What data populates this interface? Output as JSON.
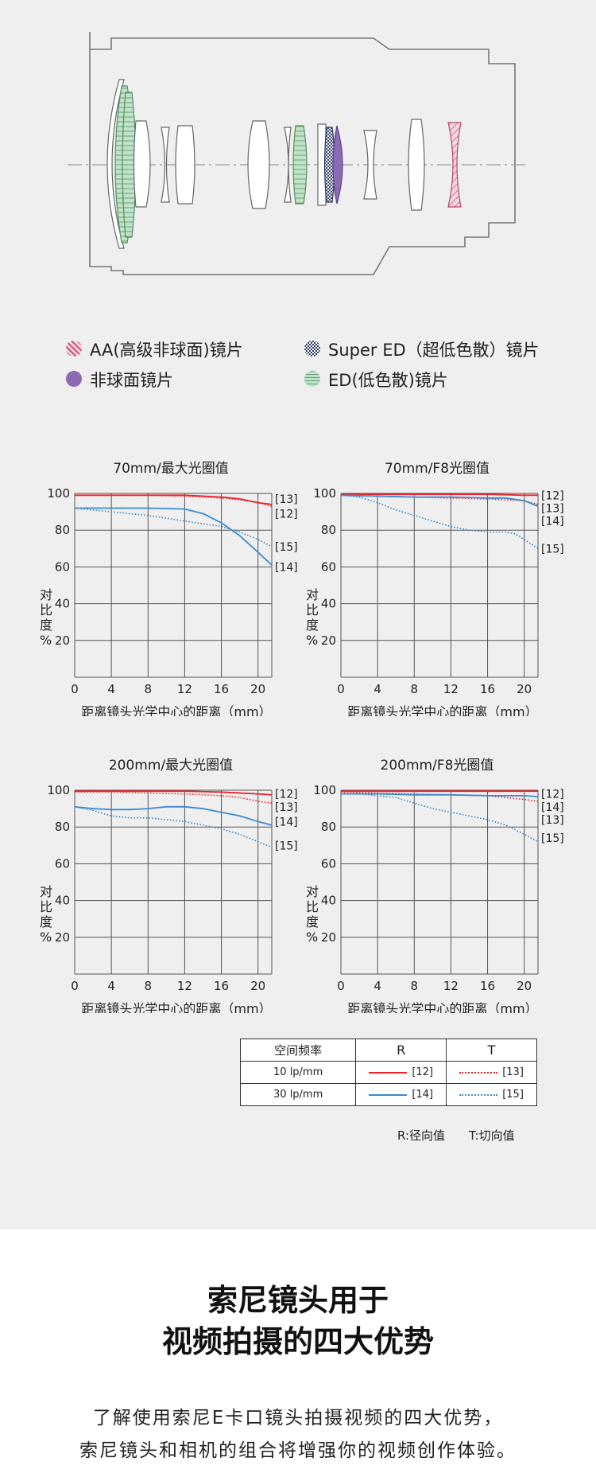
{
  "legend": {
    "aa": "AA(高级非球面)镜片",
    "super_ed": "Super ED（超低色散）镜片",
    "aspherical": "非球面镜片",
    "ed": "ED(低色散)镜片"
  },
  "colors": {
    "aa": "#e7a6b6",
    "super_ed": "#2a3a6a",
    "aspherical": "#8d6bb4",
    "ed": "#a6d6b0",
    "red": "#e8232c",
    "blue": "#3b8ad0",
    "grid": "#555555"
  },
  "axis_ylabel": "对比度%",
  "axis_xlabel": "距离镜头光学中心的距离（mm）",
  "chart_data": [
    {
      "type": "line",
      "title": "70mm/最大光圈值",
      "xlabel": "距离镜头光学中心的距离（mm）",
      "ylabel": "对比度%",
      "xlim": [
        0,
        21.5
      ],
      "ylim": [
        0,
        100
      ],
      "xticks": [
        0,
        4,
        8,
        12,
        16,
        20
      ],
      "yticks": [
        20,
        40,
        60,
        80,
        100
      ],
      "series": [
        {
          "name": "[12]",
          "style": "solid",
          "color": "red",
          "x": [
            0,
            4,
            8,
            12,
            16,
            18,
            20,
            21.5
          ],
          "y": [
            99,
            99,
            99,
            99,
            98,
            97,
            95,
            94
          ]
        },
        {
          "name": "[13]",
          "style": "dotted",
          "color": "red",
          "x": [
            0,
            4,
            8,
            12,
            16,
            18,
            20,
            21.5
          ],
          "y": [
            99,
            99,
            99,
            98.5,
            97.5,
            96.5,
            95,
            93
          ]
        },
        {
          "name": "[14]",
          "style": "solid",
          "color": "blue",
          "x": [
            0,
            4,
            8,
            12,
            14,
            16,
            18,
            20,
            21.5
          ],
          "y": [
            92,
            92,
            92,
            91.5,
            89,
            84,
            77,
            68,
            61
          ]
        },
        {
          "name": "[15]",
          "style": "dotted",
          "color": "blue",
          "x": [
            0,
            4,
            8,
            12,
            16,
            18,
            20,
            21.5
          ],
          "y": [
            92,
            90,
            88,
            85,
            82,
            79,
            75,
            71
          ]
        }
      ],
      "labels": [
        {
          "text": "[13]",
          "y": 97
        },
        {
          "text": "[12]",
          "y": 89
        },
        {
          "text": "[15]",
          "y": 71
        },
        {
          "text": "[14]",
          "y": 60
        }
      ]
    },
    {
      "type": "line",
      "title": "70mm/F8光圈值",
      "xlabel": "距离镜头光学中心的距离（mm）",
      "ylabel": "对比度%",
      "xlim": [
        0,
        21.5
      ],
      "ylim": [
        0,
        100
      ],
      "xticks": [
        0,
        4,
        8,
        12,
        16,
        20
      ],
      "yticks": [
        20,
        40,
        60,
        80,
        100
      ],
      "series": [
        {
          "name": "[12]",
          "style": "solid",
          "color": "red",
          "x": [
            0,
            4,
            8,
            12,
            16,
            20,
            21.5
          ],
          "y": [
            99.5,
            99.5,
            99.5,
            99.5,
            99.5,
            99,
            99
          ]
        },
        {
          "name": "[13]",
          "style": "dotted",
          "color": "red",
          "x": [
            0,
            4,
            8,
            12,
            16,
            20,
            21.5
          ],
          "y": [
            99,
            98.5,
            98,
            97.5,
            97,
            96,
            94
          ]
        },
        {
          "name": "[14]",
          "style": "solid",
          "color": "blue",
          "x": [
            0,
            4,
            8,
            12,
            16,
            18,
            20,
            21.5
          ],
          "y": [
            99,
            98.5,
            98,
            98,
            97.5,
            97.5,
            96,
            93
          ]
        },
        {
          "name": "[15]",
          "style": "dotted",
          "color": "blue",
          "x": [
            0,
            2,
            4,
            6,
            8,
            10,
            12,
            14,
            16,
            18,
            19,
            20,
            21.5
          ],
          "y": [
            99,
            98,
            95,
            91,
            88,
            85,
            82,
            80,
            79,
            79,
            78,
            75,
            70
          ]
        }
      ],
      "labels": [
        {
          "text": "[12]",
          "y": 99
        },
        {
          "text": "[13]",
          "y": 92
        },
        {
          "text": "[14]",
          "y": 85
        },
        {
          "text": "[15]",
          "y": 70
        }
      ]
    },
    {
      "type": "line",
      "title": "200mm/最大光圈值",
      "xlabel": "距离镜头光学中心的距离（mm）",
      "ylabel": "对比度%",
      "xlim": [
        0,
        21.5
      ],
      "ylim": [
        0,
        100
      ],
      "xticks": [
        0,
        4,
        8,
        12,
        16,
        20
      ],
      "yticks": [
        20,
        40,
        60,
        80,
        100
      ],
      "series": [
        {
          "name": "[12]",
          "style": "solid",
          "color": "red",
          "x": [
            0,
            4,
            8,
            12,
            16,
            20,
            21.5
          ],
          "y": [
            99.5,
            99.5,
            99.5,
            99.5,
            99,
            98,
            97.5
          ]
        },
        {
          "name": "[13]",
          "style": "dotted",
          "color": "red",
          "x": [
            0,
            4,
            8,
            12,
            16,
            18,
            20,
            21.5
          ],
          "y": [
            99,
            99,
            98.5,
            98,
            97,
            96,
            94,
            93
          ]
        },
        {
          "name": "[14]",
          "style": "solid",
          "color": "blue",
          "x": [
            0,
            2,
            4,
            6,
            8,
            10,
            12,
            14,
            16,
            18,
            20,
            21.5
          ],
          "y": [
            91,
            90,
            89.5,
            89.5,
            90,
            91,
            91,
            90,
            88,
            86,
            83,
            81
          ]
        },
        {
          "name": "[15]",
          "style": "dotted",
          "color": "blue",
          "x": [
            0,
            2,
            4,
            6,
            8,
            10,
            12,
            14,
            16,
            18,
            20,
            21.5
          ],
          "y": [
            91,
            89,
            86,
            85,
            85,
            84,
            83,
            81,
            79,
            76,
            72,
            69
          ]
        }
      ],
      "labels": [
        {
          "text": "[12]",
          "y": 98
        },
        {
          "text": "[13]",
          "y": 91
        },
        {
          "text": "[14]",
          "y": 83
        },
        {
          "text": "[15]",
          "y": 70
        }
      ]
    },
    {
      "type": "line",
      "title": "200mm/F8光圈值",
      "xlabel": "距离镜头光学中心的距离（mm）",
      "ylabel": "对比度%",
      "xlim": [
        0,
        21.5
      ],
      "ylim": [
        0,
        100
      ],
      "xticks": [
        0,
        4,
        8,
        12,
        16,
        20
      ],
      "yticks": [
        20,
        40,
        60,
        80,
        100
      ],
      "series": [
        {
          "name": "[12]",
          "style": "solid",
          "color": "red",
          "x": [
            0,
            4,
            8,
            12,
            16,
            20,
            21.5
          ],
          "y": [
            99.5,
            99.5,
            99.5,
            99.5,
            99.5,
            99.5,
            99.5
          ]
        },
        {
          "name": "[13]",
          "style": "dotted",
          "color": "red",
          "x": [
            0,
            4,
            8,
            12,
            16,
            20,
            21.5
          ],
          "y": [
            99,
            98.5,
            98,
            97.5,
            97,
            95,
            94
          ]
        },
        {
          "name": "[14]",
          "style": "solid",
          "color": "blue",
          "x": [
            0,
            4,
            8,
            12,
            16,
            20,
            21.5
          ],
          "y": [
            98,
            98,
            97.5,
            97.5,
            97,
            97,
            96.5
          ]
        },
        {
          "name": "[15]",
          "style": "dotted",
          "color": "blue",
          "x": [
            0,
            2,
            4,
            6,
            8,
            10,
            12,
            14,
            16,
            18,
            20,
            21.5
          ],
          "y": [
            98,
            98,
            97,
            96,
            93,
            90,
            88,
            86,
            84,
            81,
            76,
            72
          ]
        }
      ],
      "labels": [
        {
          "text": "[12]",
          "y": 98
        },
        {
          "text": "[14]",
          "y": 91
        },
        {
          "text": "[13]",
          "y": 84
        },
        {
          "text": "[15]",
          "y": 74
        }
      ]
    }
  ],
  "key_table": {
    "header": [
      "空间频率",
      "R",
      "T"
    ],
    "rows": [
      {
        "freq": "10 lp/mm",
        "r_label": "[12]",
        "t_label": "[13]"
      },
      {
        "freq": "30 lp/mm",
        "r_label": "[14]",
        "t_label": "[15]"
      }
    ],
    "note_r": "R:径向值",
    "note_t": "T:切向值"
  },
  "bottom": {
    "title_line1": "索尼镜头用于",
    "title_line2": "视频拍摄的四大优势",
    "text_line1": "了解使用索尼E卡口镜头拍摄视频的四大优势，",
    "text_line2": "索尼镜头和相机的组合将增强你的视频创作体验。"
  }
}
